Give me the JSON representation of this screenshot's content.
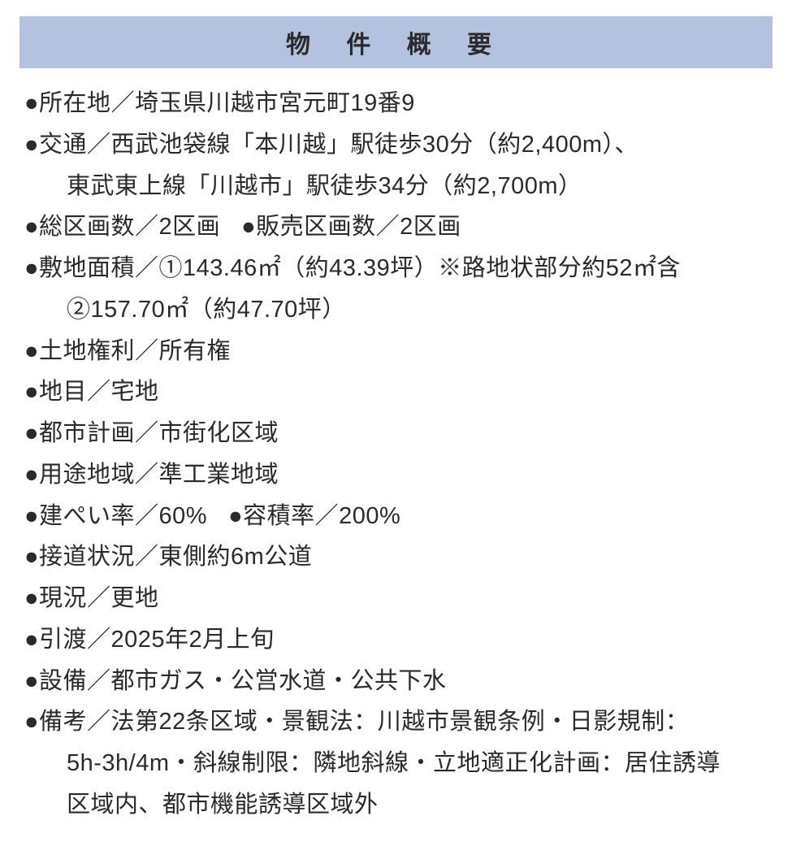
{
  "styling": {
    "header_bg": "#b3c2de",
    "text_color": "#2a2a2a",
    "page_bg": "#ffffff",
    "font_size_header": 30,
    "font_size_body": 29,
    "letter_spacing_header": 18,
    "line_height": 1.75
  },
  "header": {
    "title": "物 件 概 要"
  },
  "items": {
    "location": "●所在地／埼玉県川越市宮元町19番9",
    "transport_1": "●交通／西武池袋線「本川越」駅徒歩30分（約2,400m）、",
    "transport_2": "東武東上線「川越市」駅徒歩34分（約2,700m）",
    "total_lots": "●総区画数／2区画",
    "sale_lots": "●販売区画数／2区画",
    "site_area_1": "●敷地面積／①143.46㎡（約43.39坪）※路地状部分約52㎡含",
    "site_area_2": "②157.70㎡（約47.70坪）",
    "land_rights": "●土地権利／所有権",
    "land_category": "●地目／宅地",
    "city_planning": "●都市計画／市街化区域",
    "zoning": "●用途地域／準工業地域",
    "building_coverage": "●建ぺい率／60%",
    "floor_area_ratio": "●容積率／200%",
    "road_access": "●接道状況／東側約6m公道",
    "current_state": "●現況／更地",
    "delivery": "●引渡／2025年2月上旬",
    "facilities": "●設備／都市ガス・公営水道・公共下水",
    "remarks_1": "●備考／法第22条区域・景観法：川越市景観条例・日影規制：",
    "remarks_2": "5h-3h/4m・斜線制限：隣地斜線・立地適正化計画：居住誘導",
    "remarks_3": "区域内、都市機能誘導区域外"
  }
}
